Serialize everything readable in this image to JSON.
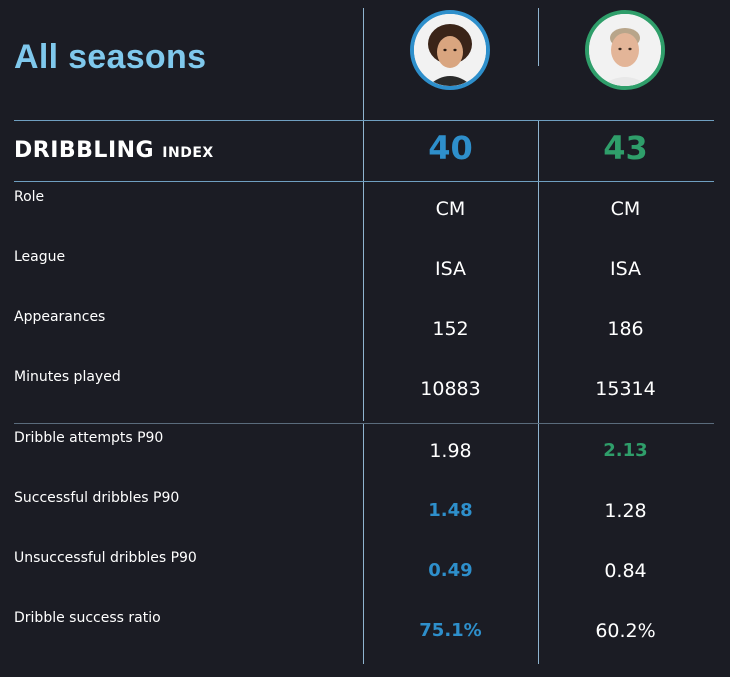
{
  "title": "All seasons",
  "colors": {
    "player1": "#2e8fcb",
    "player2": "#2f9e6a",
    "title": "#7fc8ec",
    "background": "#1b1c24"
  },
  "players": [
    {
      "avatar": "player-1-photo",
      "ring_color": "#2e8fcb"
    },
    {
      "avatar": "player-2-photo",
      "ring_color": "#2f9e6a"
    }
  ],
  "index": {
    "label": "DRIBBLING",
    "suffix": "INDEX",
    "values": [
      "40",
      "43"
    ]
  },
  "profile_rows": [
    {
      "label": "Role",
      "values": [
        "CM",
        "CM"
      ]
    },
    {
      "label": "League",
      "values": [
        "ISA",
        "ISA"
      ]
    },
    {
      "label": "Appearances",
      "values": [
        "152",
        "186"
      ]
    },
    {
      "label": "Minutes played",
      "values": [
        "10883",
        "15314"
      ]
    }
  ],
  "stat_rows": [
    {
      "label": "Dribble attempts P90",
      "values": [
        "1.98",
        "2.13"
      ],
      "highlight": 1
    },
    {
      "label": "Successful dribbles P90",
      "values": [
        "1.48",
        "1.28"
      ],
      "highlight": 0
    },
    {
      "label": "Unsuccessful dribbles P90",
      "values": [
        "0.49",
        "0.84"
      ],
      "highlight": 0
    },
    {
      "label": "Dribble success ratio",
      "values": [
        "75.1%",
        "60.2%"
      ],
      "highlight": 0
    }
  ]
}
